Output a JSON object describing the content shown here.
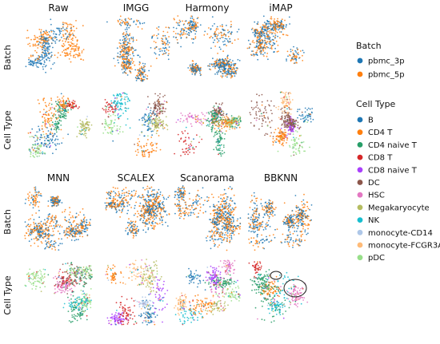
{
  "chart_data": {
    "type": "scatter",
    "title": "",
    "xlabel": "",
    "ylabel": "",
    "grid": false,
    "methods_top": [
      "Raw",
      "IMGG",
      "Harmony",
      "iMAP"
    ],
    "methods_bottom": [
      "MNN",
      "SCALEX",
      "Scanorama",
      "BBKNN"
    ],
    "row_labels": [
      "Batch",
      "Cell Type",
      "Batch",
      "Cell Type"
    ],
    "legends": [
      {
        "title": "Batch",
        "placement": "right",
        "entries": [
          {
            "label": "pbmc_3p",
            "color": "#1f77b4"
          },
          {
            "label": "pbmc_5p",
            "color": "#ff7f0e"
          }
        ]
      },
      {
        "title": "Cell Type",
        "placement": "right",
        "entries": [
          {
            "label": "B",
            "color": "#1f77b4"
          },
          {
            "label": "CD4 T",
            "color": "#ff7f0e"
          },
          {
            "label": "CD4 naive T",
            "color": "#279e68"
          },
          {
            "label": "CD8 T",
            "color": "#d62728"
          },
          {
            "label": "CD8 naive T",
            "color": "#aa40fc"
          },
          {
            "label": "DC",
            "color": "#8c564b"
          },
          {
            "label": "HSC",
            "color": "#e377c2"
          },
          {
            "label": "Megakaryocyte",
            "color": "#b5bd61"
          },
          {
            "label": "NK",
            "color": "#17becf"
          },
          {
            "label": "monocyte-CD14",
            "color": "#aec7e8"
          },
          {
            "label": "monocyte-FCGR3A",
            "color": "#ffbb78"
          },
          {
            "label": "pDC",
            "color": "#98df8a"
          }
        ]
      }
    ],
    "annotations": {
      "BBKNN_cell_type": "two circled clusters"
    }
  }
}
